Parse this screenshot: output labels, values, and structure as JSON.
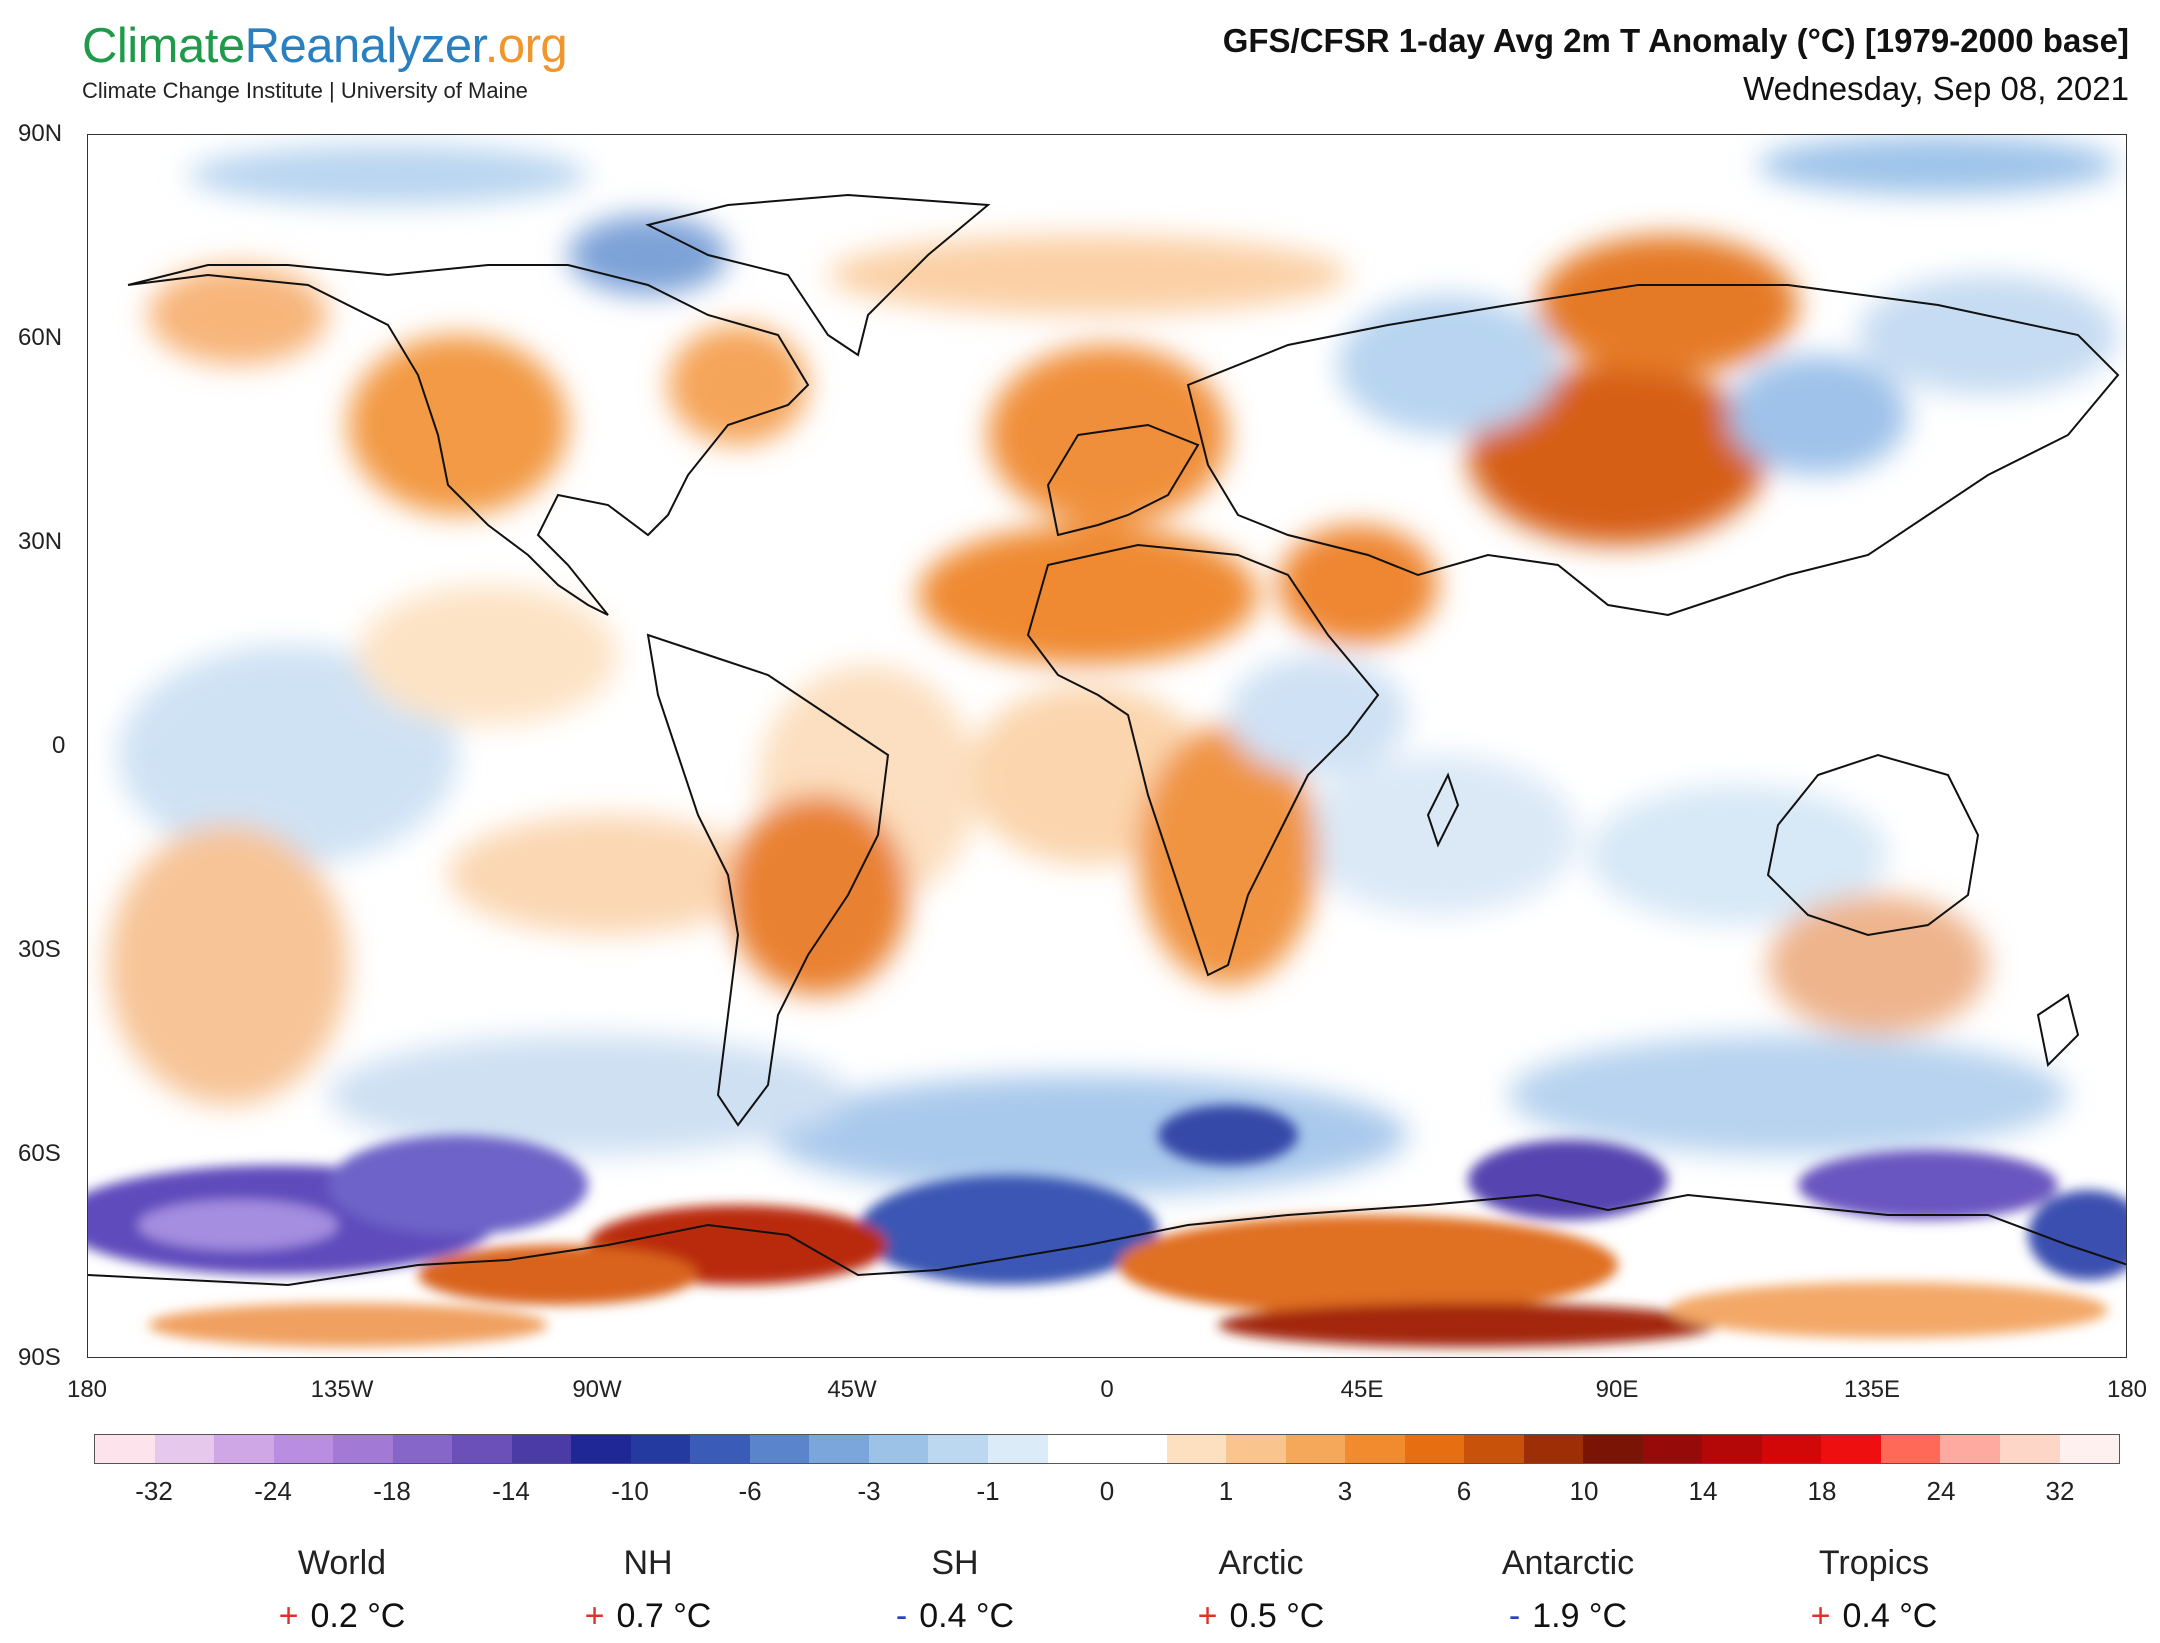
{
  "header": {
    "logo": {
      "part1": "Climate",
      "part2": "Reanalyzer",
      "part3": ".org"
    },
    "institute": "Climate Change Institute | University of Maine",
    "title": "GFS/CFSR 1-day Avg 2m T Anomaly (°C) [1979-2000 base]",
    "date": "Wednesday, Sep 08, 2021"
  },
  "map": {
    "lat_labels": [
      "90N",
      "60N",
      "30N",
      "0",
      "30S",
      "60S",
      "90S"
    ],
    "lon_labels": [
      "180",
      "135W",
      "90W",
      "45W",
      "0",
      "45E",
      "90E",
      "135E",
      "180"
    ],
    "anomaly_regions": [
      {
        "name": "western-north-america",
        "level": "warm"
      },
      {
        "name": "eastern-canada",
        "level": "warm"
      },
      {
        "name": "greenland",
        "level": "cold"
      },
      {
        "name": "scandinavia-europe",
        "level": "warm"
      },
      {
        "name": "north-africa",
        "level": "warm"
      },
      {
        "name": "arabia",
        "level": "warm"
      },
      {
        "name": "central-asia",
        "level": "hot"
      },
      {
        "name": "siberia",
        "level": "warm"
      },
      {
        "name": "west-siberia",
        "level": "cold"
      },
      {
        "name": "mongolia",
        "level": "cold"
      },
      {
        "name": "brazil",
        "level": "warm"
      },
      {
        "name": "southern-africa",
        "level": "warm"
      },
      {
        "name": "southwest-australia",
        "level": "warm"
      },
      {
        "name": "amundsen-sea",
        "level": "very-cold"
      },
      {
        "name": "antarctic-peninsula",
        "level": "very-hot"
      },
      {
        "name": "east-antarctica",
        "level": "warm"
      },
      {
        "name": "indian-ocean-sector",
        "level": "very-cold"
      },
      {
        "name": "pacific-sector",
        "level": "very-cold"
      }
    ]
  },
  "colorbar": {
    "colors": [
      "#fde4ec",
      "#e6c8ec",
      "#cfa6e6",
      "#b98ee0",
      "#a27ad6",
      "#8666c8",
      "#6a50b8",
      "#4b3ba6",
      "#1f2796",
      "#253aa0",
      "#3a5cb8",
      "#5a84cc",
      "#7aa6dc",
      "#9cc2e8",
      "#bcd8f0",
      "#dcebf8",
      "#ffffff",
      "#ffffff",
      "#fde0bf",
      "#f9c48e",
      "#f5a75a",
      "#f28a2e",
      "#e86e12",
      "#c8520a",
      "#9e2e06",
      "#7a1404",
      "#960a0a",
      "#b40808",
      "#d20808",
      "#ee1010",
      "#ff6a58",
      "#ffaaa0",
      "#fed6c8",
      "#fff0f0"
    ],
    "labels": [
      "-32",
      "-24",
      "-18",
      "-14",
      "-10",
      "-6",
      "-3",
      "-1",
      "0",
      "1",
      "3",
      "6",
      "10",
      "14",
      "18",
      "24",
      "32"
    ]
  },
  "stats": [
    {
      "name": "World",
      "sign": "+",
      "value": "0.2 °C"
    },
    {
      "name": "NH",
      "sign": "+",
      "value": "0.7 °C"
    },
    {
      "name": "SH",
      "sign": "-",
      "value": "0.4 °C"
    },
    {
      "name": "Arctic",
      "sign": "+",
      "value": "0.5 °C"
    },
    {
      "name": "Antarctic",
      "sign": "-",
      "value": "1.9 °C"
    },
    {
      "name": "Tropics",
      "sign": "+",
      "value": "0.4 °C"
    }
  ]
}
